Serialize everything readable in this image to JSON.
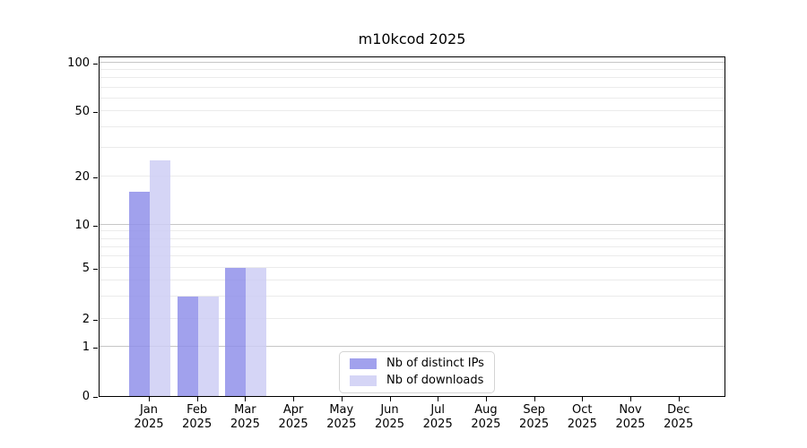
{
  "chart_data": {
    "type": "bar",
    "title": "m10kcod 2025",
    "categories": [
      "Jan",
      "Feb",
      "Mar",
      "Apr",
      "May",
      "Jun",
      "Jul",
      "Aug",
      "Sep",
      "Oct",
      "Nov",
      "Dec"
    ],
    "category_year": "2025",
    "series": [
      {
        "name": "Nb of distinct IPs",
        "color": "#8f8fea",
        "values": [
          16,
          3,
          5,
          0,
          0,
          0,
          0,
          0,
          0,
          0,
          0,
          0
        ]
      },
      {
        "name": "Nb of downloads",
        "color": "#cdcdf4",
        "values": [
          25,
          3,
          5,
          0,
          0,
          0,
          0,
          0,
          0,
          0,
          0,
          0
        ]
      }
    ],
    "y_axis": {
      "tick_labels": [
        0,
        1,
        2,
        5,
        10,
        20,
        50,
        100
      ],
      "major_gridlines": [
        1,
        10,
        100
      ],
      "minor_gridlines": [
        3,
        4,
        6,
        7,
        8,
        9,
        30,
        40,
        60,
        70,
        80,
        90
      ],
      "scale": "log-like",
      "range_top": 110
    },
    "grid": "on",
    "legend": {
      "position": "lower center"
    }
  }
}
